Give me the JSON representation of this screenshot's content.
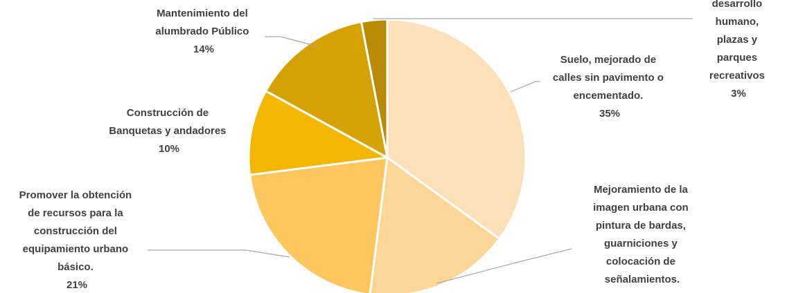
{
  "chart_data": {
    "type": "pie",
    "title": "",
    "slices": [
      {
        "lines": [
          "Suelo, mejorado de",
          "calles sin pavimento o",
          "encementado."
        ],
        "pct_label": "35%",
        "value": 35,
        "color": "#FCE0B8"
      },
      {
        "lines": [
          "Mejoramiento de la",
          "imagen urbana con",
          "pintura de bardas,",
          "guarniciones y",
          "colocación de",
          "señalamientos."
        ],
        "pct_label": "",
        "value": 17,
        "color": "#FDD596"
      },
      {
        "lines": [
          "Promover la obtención",
          "de recursos para la",
          "construcción del",
          "equipamiento urbano",
          "básico."
        ],
        "pct_label": "21%",
        "value": 21,
        "color": "#FEC65F"
      },
      {
        "lines": [
          "Construcción de",
          "Banquetas y andadores"
        ],
        "pct_label": "10%",
        "value": 10,
        "color": "#F3B702"
      },
      {
        "lines": [
          "Mantenimiento del",
          "alumbrado Público"
        ],
        "pct_label": "14%",
        "value": 14,
        "color": "#D6A203"
      },
      {
        "lines": [
          "desarrollo",
          "humano,",
          "plazas y",
          "parques",
          "recreativos"
        ],
        "pct_label": "3%",
        "value": 3,
        "color": "#B88B03"
      }
    ]
  }
}
